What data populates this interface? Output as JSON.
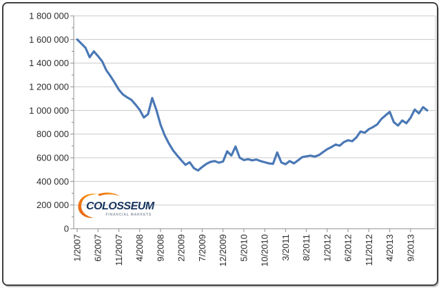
{
  "chart_data": {
    "type": "line",
    "title": "",
    "xlabel": "",
    "ylabel": "",
    "ylim": [
      0,
      1800000
    ],
    "y_major_step": 200000,
    "y_minor_step": 100000,
    "grid": "horizontal",
    "legend": "none",
    "y_tick_labels": [
      "0",
      "200 000",
      "400 000",
      "600 000",
      "800 000",
      "1 000 000",
      "1 200 000",
      "1 400 000",
      "1 600 000",
      "1 800 000"
    ],
    "x_tick_labels": [
      "1/2007",
      "6/2007",
      "11/2007",
      "4/2008",
      "9/2008",
      "2/2009",
      "7/2009",
      "12/2009",
      "5/2010",
      "10/2010",
      "3/2011",
      "8/2011",
      "1/2012",
      "6/2012",
      "11/2012",
      "4/2013",
      "9/2013"
    ],
    "x_tick_every": 5,
    "x": [
      "1/2007",
      "2/2007",
      "3/2007",
      "4/2007",
      "5/2007",
      "6/2007",
      "7/2007",
      "8/2007",
      "9/2007",
      "10/2007",
      "11/2007",
      "12/2007",
      "1/2008",
      "2/2008",
      "3/2008",
      "4/2008",
      "5/2008",
      "6/2008",
      "7/2008",
      "8/2008",
      "9/2008",
      "10/2008",
      "11/2008",
      "12/2008",
      "1/2009",
      "2/2009",
      "3/2009",
      "4/2009",
      "5/2009",
      "6/2009",
      "7/2009",
      "8/2009",
      "9/2009",
      "10/2009",
      "11/2009",
      "12/2009",
      "1/2010",
      "2/2010",
      "3/2010",
      "4/2010",
      "5/2010",
      "6/2010",
      "7/2010",
      "8/2010",
      "9/2010",
      "10/2010",
      "11/2010",
      "12/2010",
      "1/2011",
      "2/2011",
      "3/2011",
      "4/2011",
      "5/2011",
      "6/2011",
      "7/2011",
      "8/2011",
      "9/2011",
      "10/2011",
      "11/2011",
      "12/2011",
      "1/2012",
      "2/2012",
      "3/2012",
      "4/2012",
      "5/2012",
      "6/2012",
      "7/2012",
      "8/2012",
      "9/2012",
      "10/2012",
      "11/2012",
      "12/2012",
      "1/2013",
      "2/2013",
      "3/2013",
      "4/2013",
      "5/2013",
      "6/2013",
      "7/2013",
      "8/2013",
      "9/2013",
      "10/2013",
      "11/2013",
      "12/2013",
      "1/2014"
    ],
    "series": [
      {
        "name": "value",
        "color": "#4a78b5",
        "values": [
          1600000,
          1565000,
          1530000,
          1450000,
          1500000,
          1460000,
          1415000,
          1340000,
          1290000,
          1235000,
          1175000,
          1135000,
          1110000,
          1090000,
          1050000,
          1005000,
          940000,
          968000,
          1105000,
          1005000,
          880000,
          790000,
          722000,
          663000,
          620000,
          578000,
          540000,
          562000,
          512000,
          492000,
          522000,
          548000,
          565000,
          572000,
          558000,
          568000,
          655000,
          618000,
          695000,
          600000,
          580000,
          588000,
          578000,
          585000,
          572000,
          562000,
          552000,
          548000,
          645000,
          560000,
          545000,
          572000,
          552000,
          578000,
          605000,
          612000,
          618000,
          610000,
          622000,
          648000,
          672000,
          690000,
          712000,
          702000,
          732000,
          748000,
          740000,
          772000,
          822000,
          812000,
          842000,
          860000,
          882000,
          928000,
          958000,
          988000,
          900000,
          872000,
          915000,
          892000,
          938000,
          1008000,
          975000,
          1028000,
          1000000
        ]
      }
    ],
    "colors": {
      "line": "#4a78b5",
      "gridline": "#c9c9c9",
      "axis": "#8c8c8c",
      "tick": "#8c8c8c",
      "label": "#2b2b2b"
    }
  },
  "logo": {
    "name": "COLOSSEUM",
    "tagline": "FINANCIAL MARKETS",
    "navy": "#17335e",
    "orange_light": "#f9a825",
    "orange_dark": "#e65c0f",
    "tagline_color": "#8e97a5"
  }
}
